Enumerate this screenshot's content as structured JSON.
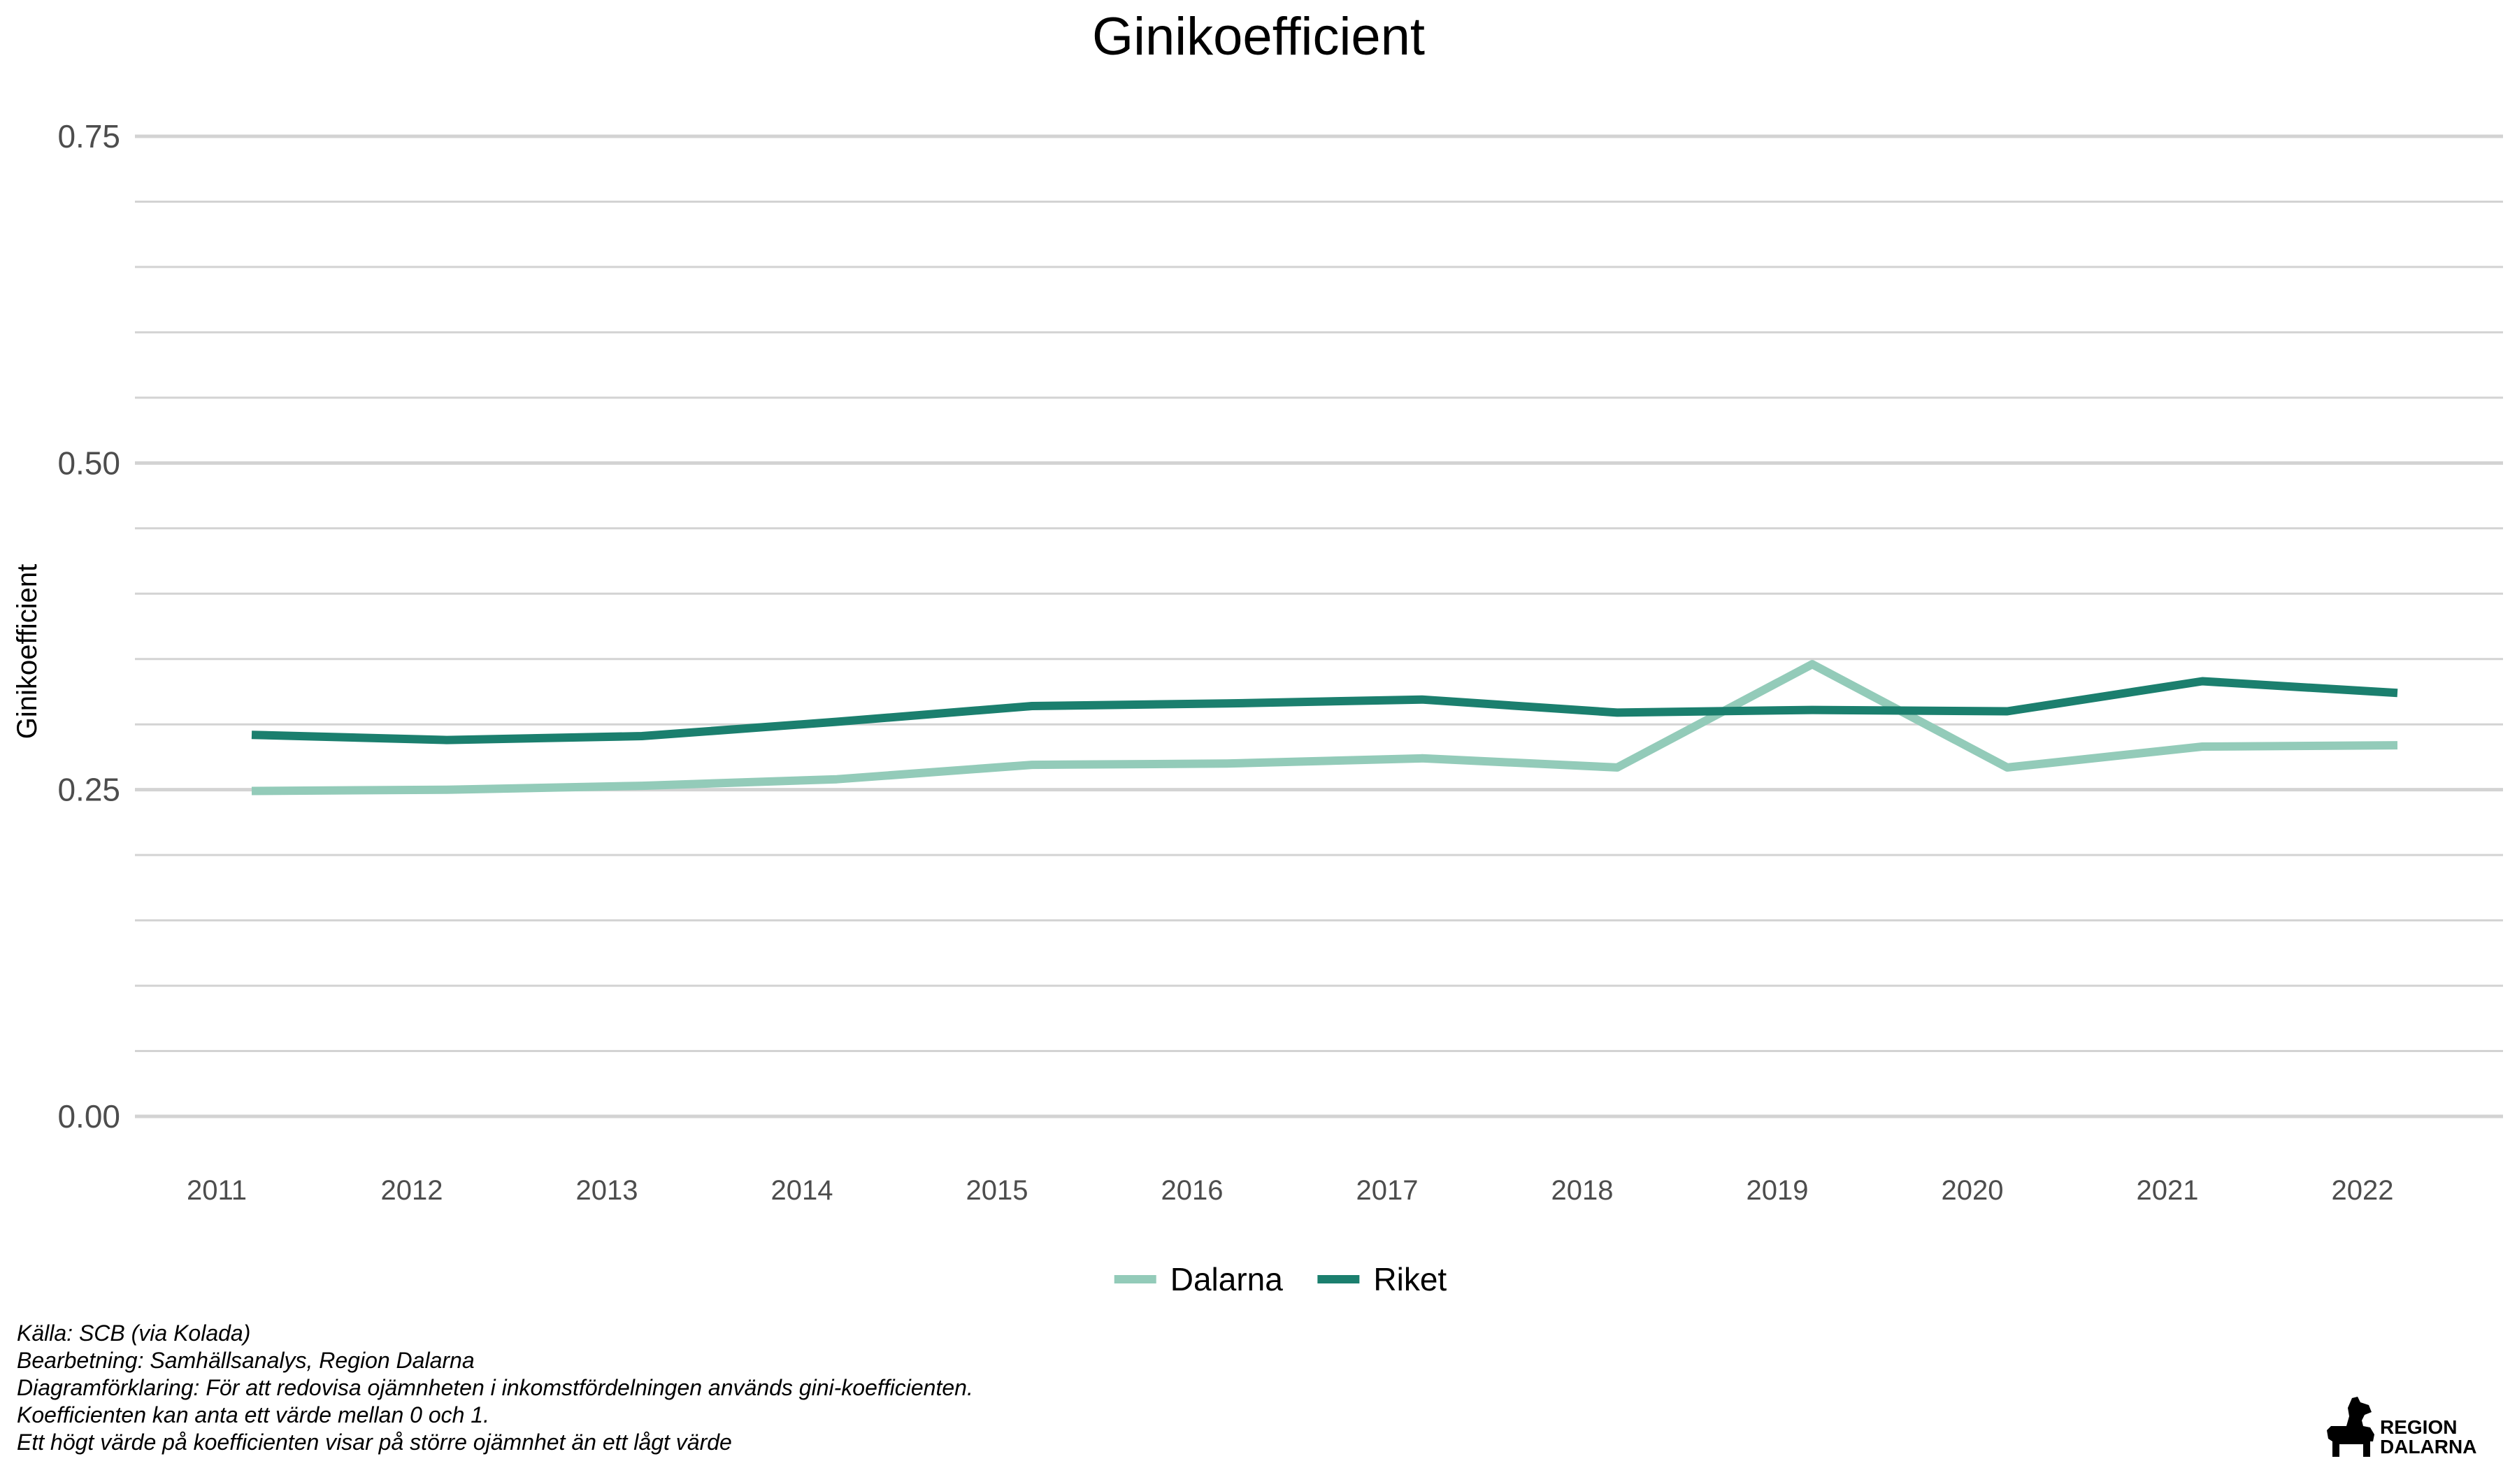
{
  "chart_data": {
    "type": "line",
    "title": "Ginikoefficient",
    "xlabel": "",
    "ylabel": "Ginikoefficient",
    "categories": [
      "2011",
      "2012",
      "2013",
      "2014",
      "2015",
      "2016",
      "2017",
      "2018",
      "2019",
      "2020",
      "2021",
      "2022"
    ],
    "ylim": [
      0,
      0.75
    ],
    "yticks": [
      "0.00",
      "0.25",
      "0.50",
      "0.75"
    ],
    "grid": true,
    "legend_position": "bottom",
    "series": [
      {
        "name": "Dalarna",
        "color": "#93CBB9",
        "values": [
          0.249,
          0.25,
          0.253,
          0.258,
          0.269,
          0.27,
          0.274,
          0.267,
          0.346,
          0.267,
          0.283,
          0.284
        ]
      },
      {
        "name": "Riket",
        "color": "#1B7F6E",
        "values": [
          0.292,
          0.288,
          0.291,
          0.302,
          0.314,
          0.316,
          0.319,
          0.309,
          0.311,
          0.31,
          0.333,
          0.324
        ]
      }
    ]
  },
  "caption": {
    "source": "Källa: SCB (via Kolada)",
    "processing": "Bearbetning: Samhällsanalys, Region Dalarna",
    "explanation_1": "Diagramförklaring: För att redovisa ojämnheten i inkomstfördelningen används gini-koefficienten.",
    "explanation_2": "Koefficienten kan anta ett värde mellan 0 och 1.",
    "explanation_3": "Ett högt värde på koefficienten visar på större ojämnhet än ett lågt värde"
  },
  "logo": {
    "line1": "REGION",
    "line2": "DALARNA",
    "icon": "dalahorse-icon"
  }
}
